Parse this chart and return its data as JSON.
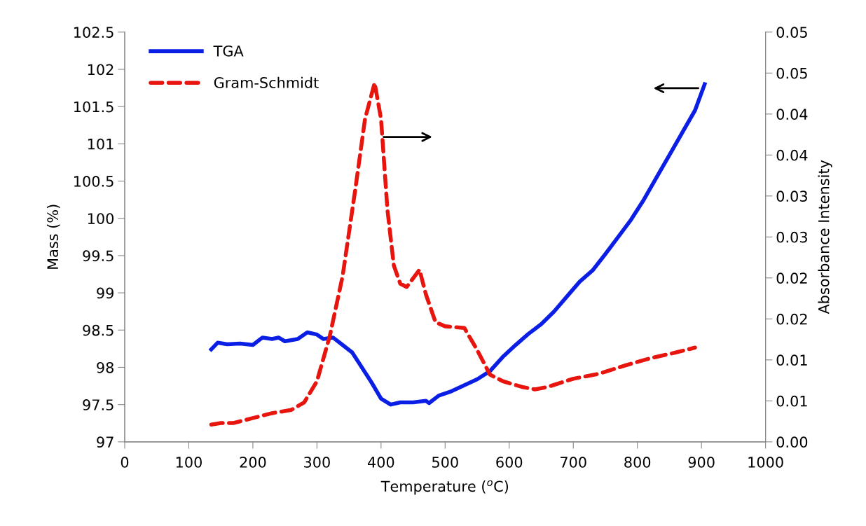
{
  "chart_data": {
    "type": "line",
    "xlabel": "Temperature ($^{o}$C)",
    "ylabel": "Mass (%)",
    "y2label": "Absorbance Intensity",
    "xlim": [
      0,
      1000
    ],
    "xticks": [
      0,
      100,
      200,
      300,
      400,
      500,
      600,
      700,
      800,
      900,
      1000
    ],
    "ylim": [
      97,
      102.5
    ],
    "yticks": [
      97,
      97.5,
      98,
      98.5,
      99,
      99.5,
      100,
      100.5,
      101,
      101.5,
      102,
      102.5
    ],
    "y2lim": [
      0,
      0.05
    ],
    "y2ticks": [
      {
        "value": 0,
        "label": "0.00"
      },
      {
        "value": 0.005,
        "label": "0.01"
      },
      {
        "value": 0.01,
        "label": "0.01"
      },
      {
        "value": 0.015,
        "label": "0.02"
      },
      {
        "value": 0.02,
        "label": "0.02"
      },
      {
        "value": 0.025,
        "label": "0.03"
      },
      {
        "value": 0.03,
        "label": "0.03"
      },
      {
        "value": 0.035,
        "label": "0.04"
      },
      {
        "value": 0.04,
        "label": "0.04"
      },
      {
        "value": 0.045,
        "label": "0.05"
      },
      {
        "value": 0.05,
        "label": "0.05"
      }
    ],
    "grid": false,
    "legend": "top left",
    "series": [
      {
        "name": "TGA",
        "color": "#0a1ee6",
        "line_style": "solid",
        "x": [
          135,
          145,
          160,
          180,
          200,
          215,
          230,
          240,
          250,
          270,
          285,
          300,
          310,
          325,
          340,
          355,
          370,
          385,
          400,
          415,
          430,
          450,
          470,
          475,
          490,
          510,
          530,
          550,
          570,
          590,
          610,
          630,
          650,
          670,
          690,
          710,
          730,
          750,
          770,
          790,
          810,
          830,
          850,
          870,
          890,
          905
        ],
        "values": [
          98.24,
          98.33,
          98.31,
          98.32,
          98.3,
          98.4,
          98.38,
          98.4,
          98.35,
          98.38,
          98.47,
          98.44,
          98.38,
          98.4,
          98.3,
          98.2,
          98.0,
          97.8,
          97.58,
          97.5,
          97.53,
          97.53,
          97.55,
          97.52,
          97.62,
          97.68,
          97.76,
          97.84,
          97.95,
          98.14,
          98.3,
          98.45,
          98.58,
          98.75,
          98.95,
          99.15,
          99.3,
          99.52,
          99.75,
          99.98,
          100.25,
          100.55,
          100.85,
          101.15,
          101.45,
          101.8
        ]
      },
      {
        "name": "Gram-Schmidt",
        "color": "#e8150f",
        "line_style": "dashed",
        "axis": "y2",
        "x": [
          135,
          150,
          170,
          200,
          230,
          260,
          280,
          300,
          320,
          340,
          360,
          375,
          390,
          400,
          410,
          420,
          430,
          440,
          460,
          470,
          485,
          500,
          530,
          550,
          570,
          590,
          620,
          640,
          660,
          700,
          740,
          780,
          820,
          860,
          890
        ],
        "values": [
          0.0021,
          0.0023,
          0.0023,
          0.0029,
          0.0035,
          0.0039,
          0.0048,
          0.0074,
          0.0129,
          0.0202,
          0.0309,
          0.0394,
          0.0438,
          0.0394,
          0.0283,
          0.0215,
          0.0193,
          0.0189,
          0.021,
          0.018,
          0.0146,
          0.0141,
          0.0139,
          0.0112,
          0.0082,
          0.0074,
          0.0067,
          0.0064,
          0.0067,
          0.0077,
          0.0083,
          0.0093,
          0.0102,
          0.0109,
          0.0115
        ]
      }
    ]
  }
}
